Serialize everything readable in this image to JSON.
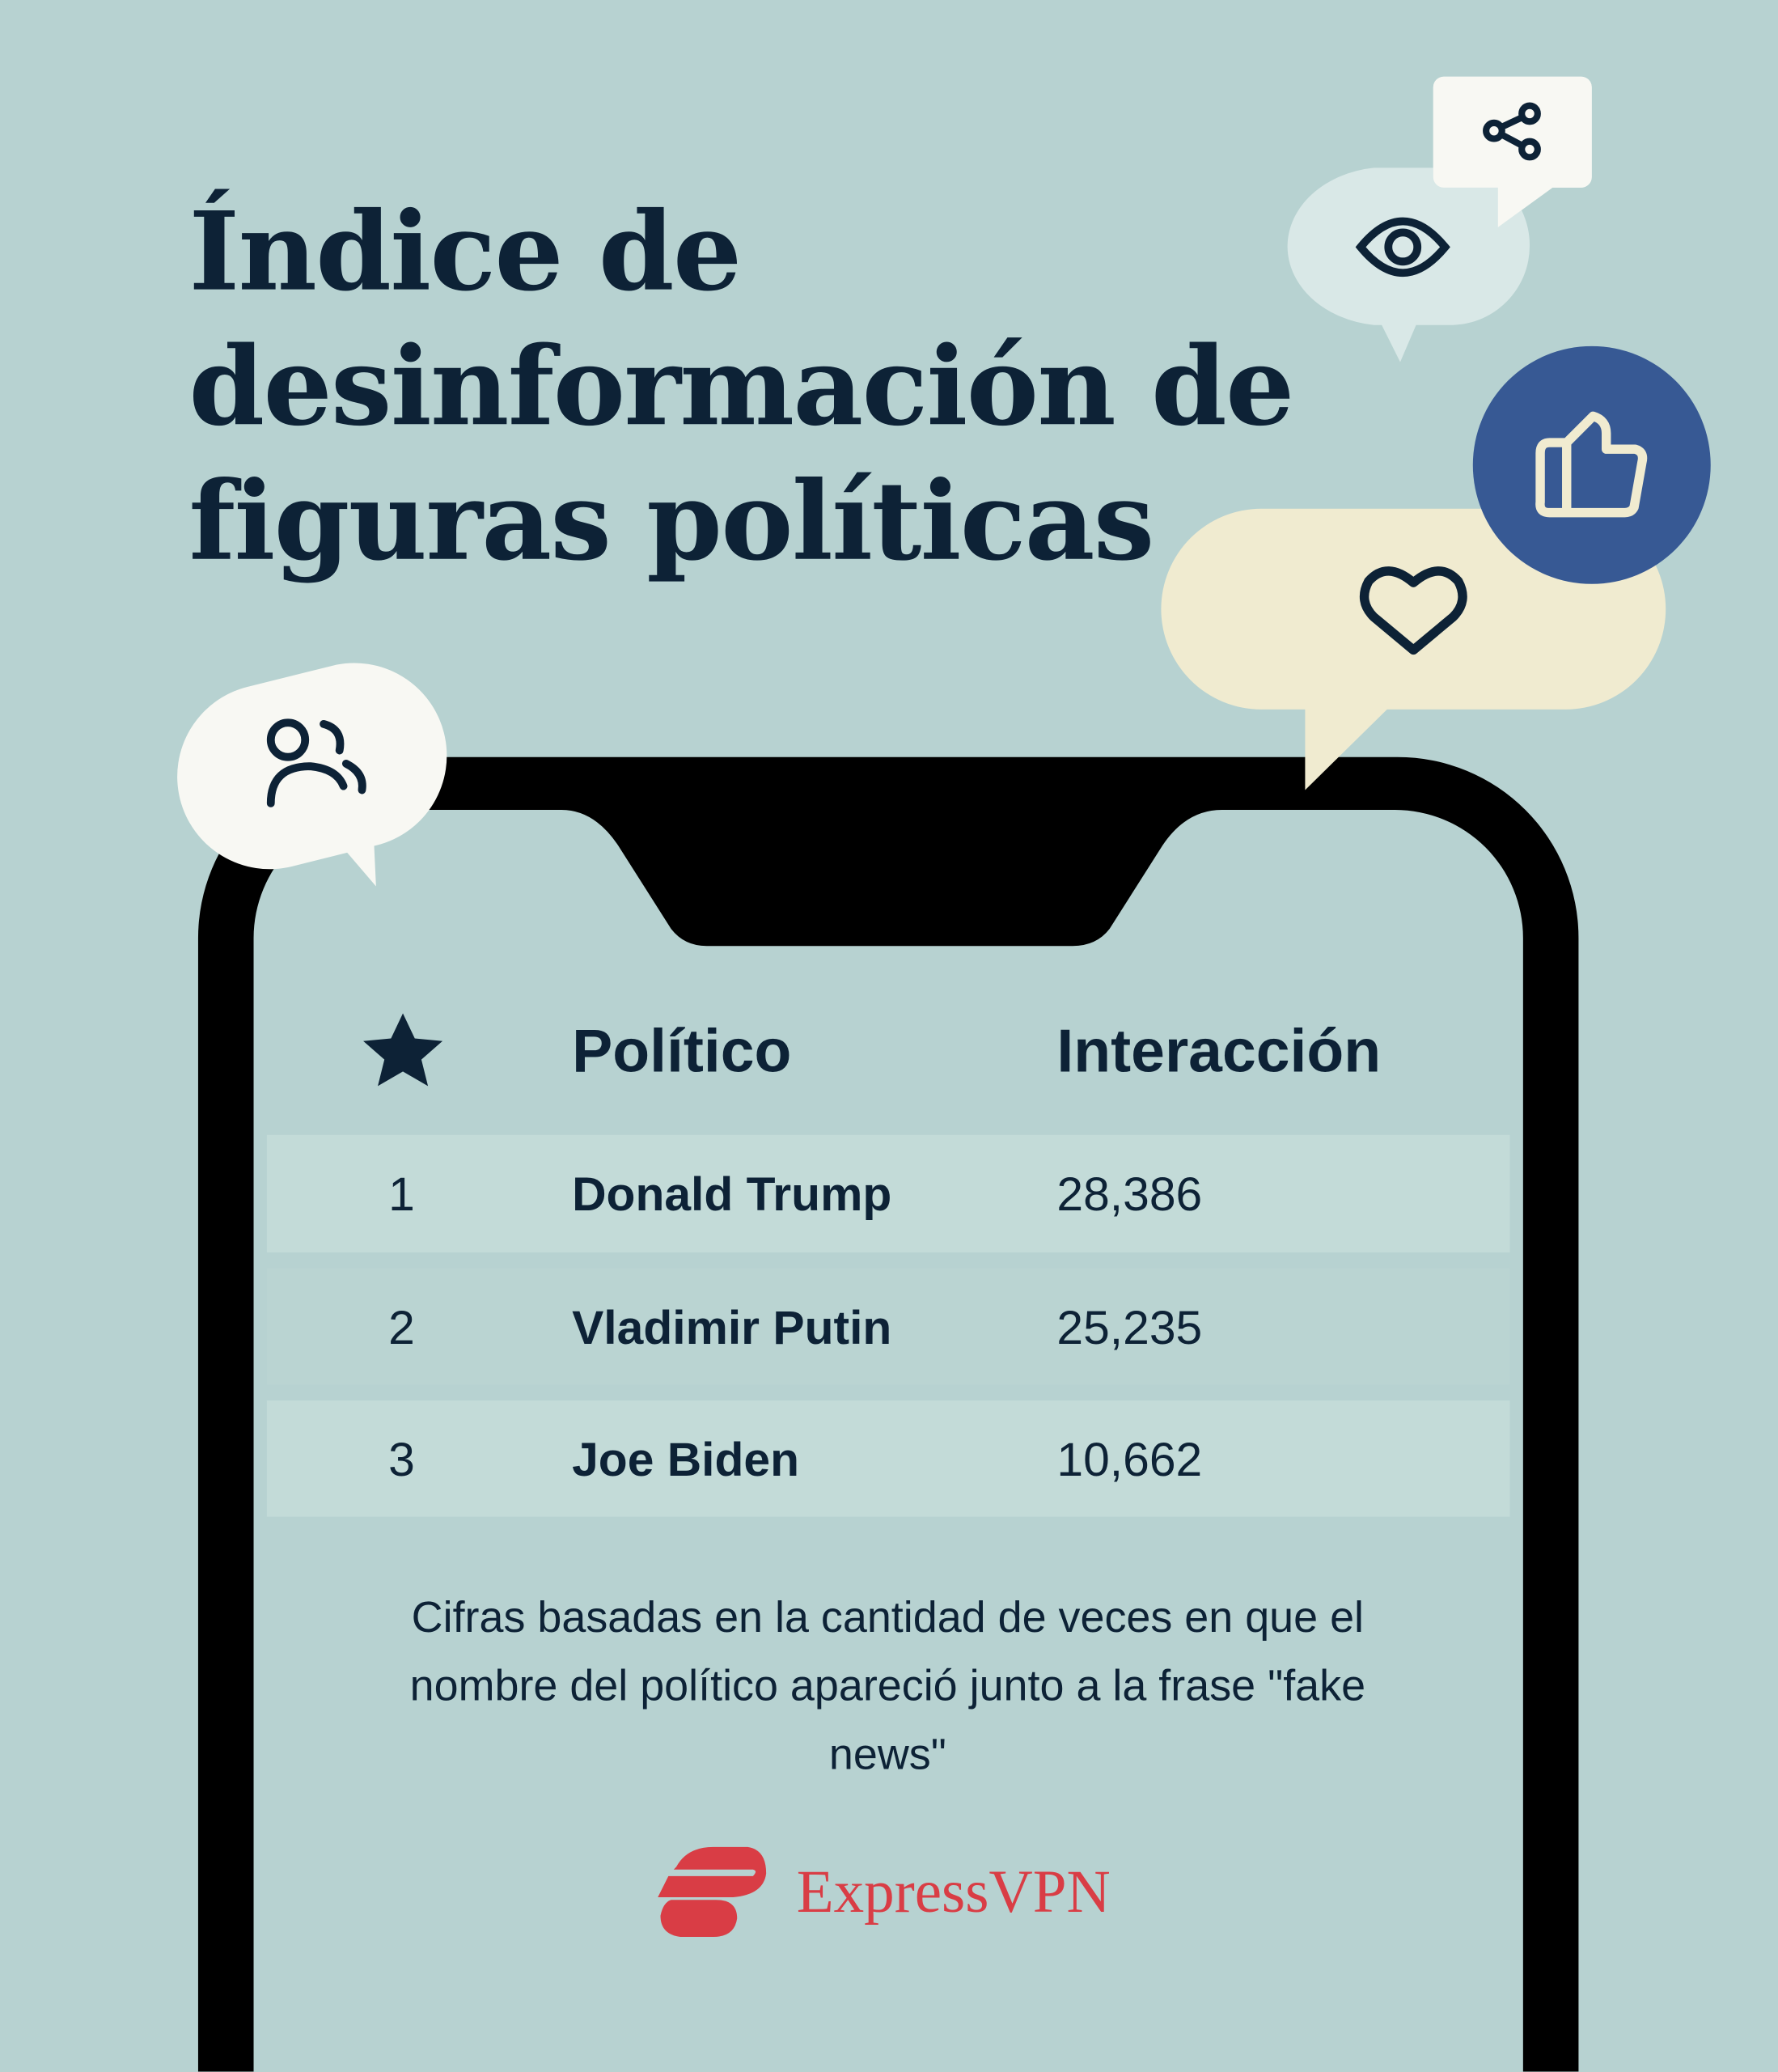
{
  "title": {
    "lines": [
      "Índice de",
      "desinformación de",
      "figuras políticas"
    ]
  },
  "icons": [
    "share-icon",
    "eye-icon",
    "thumbs-up-icon",
    "heart-icon",
    "users-icon",
    "star-icon"
  ],
  "colors": {
    "background": "#b7d2d1",
    "text": "#0d2236",
    "thumb_bubble": "#375994",
    "heart_bubble": "#f0ebd0",
    "brand": "#d93d45"
  },
  "table": {
    "headers": {
      "rank_icon": "star-icon",
      "politician": "Político",
      "interaction": "Interacción"
    },
    "rows": [
      {
        "rank": "1",
        "name": "Donald Trump",
        "value": "28,386"
      },
      {
        "rank": "2",
        "name": "Vladimir Putin",
        "value": "25,235"
      },
      {
        "rank": "3",
        "name": "Joe Biden",
        "value": "10,662"
      }
    ]
  },
  "footnote": "Cifras basadas en la cantidad de veces en que el nombre del político apareció junto a la frase \"fake news\"",
  "brand": {
    "name": "ExpressVPN"
  }
}
